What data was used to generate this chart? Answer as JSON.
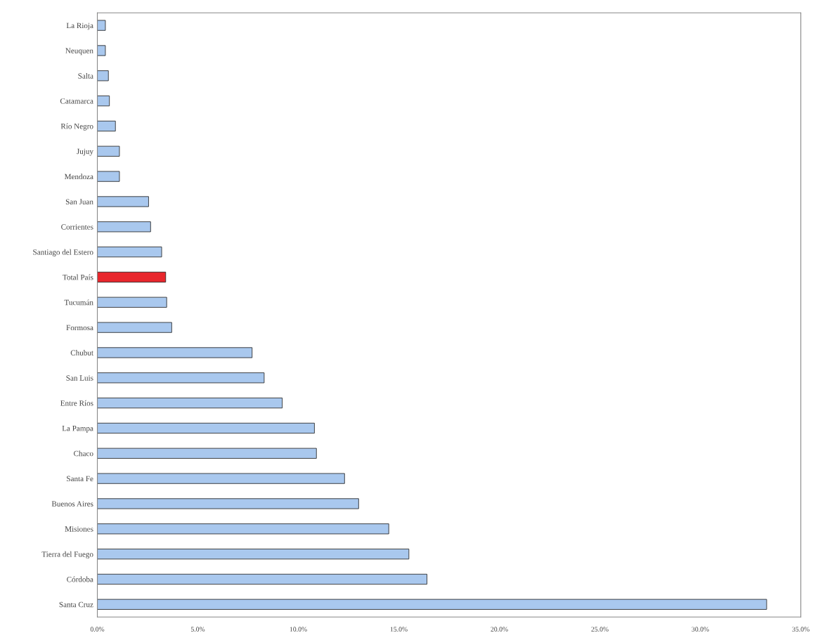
{
  "chart_data": {
    "type": "bar",
    "orientation": "horizontal",
    "categories": [
      "La Rioja",
      "Neuquen",
      "Salta",
      "Catamarca",
      "Río Negro",
      "Jujuy",
      "Mendoza",
      "San Juan",
      "Corrientes",
      "Santiago del Estero",
      "Total País",
      "Tucumán",
      "Formosa",
      "Chubut",
      "San Luis",
      "Entre Ríos",
      "La Pampa",
      "Chaco",
      "Santa Fe",
      "Buenos Aires",
      "Misiones",
      "Tierra del Fuego",
      "Córdoba",
      "Santa Cruz"
    ],
    "values": [
      0.4,
      0.4,
      0.55,
      0.6,
      0.9,
      1.1,
      1.1,
      2.55,
      2.65,
      3.2,
      3.4,
      3.45,
      3.7,
      7.7,
      8.3,
      9.2,
      10.8,
      10.9,
      12.3,
      13.0,
      14.5,
      15.5,
      16.4,
      33.3
    ],
    "colors": [
      "#a9c8ee",
      "#a9c8ee",
      "#a9c8ee",
      "#a9c8ee",
      "#a9c8ee",
      "#a9c8ee",
      "#a9c8ee",
      "#a9c8ee",
      "#a9c8ee",
      "#a9c8ee",
      "#e8262c",
      "#a9c8ee",
      "#a9c8ee",
      "#a9c8ee",
      "#a9c8ee",
      "#a9c8ee",
      "#a9c8ee",
      "#a9c8ee",
      "#a9c8ee",
      "#a9c8ee",
      "#a9c8ee",
      "#a9c8ee",
      "#a9c8ee",
      "#a9c8ee"
    ],
    "xlim": [
      0,
      35
    ],
    "xticks": [
      {
        "value": 0,
        "label": "0.0%"
      },
      {
        "value": 5,
        "label": "5.0%"
      },
      {
        "value": 10,
        "label": "10.0%"
      },
      {
        "value": 15,
        "label": "15.0%"
      },
      {
        "value": 20,
        "label": "20.0%"
      },
      {
        "value": 25,
        "label": "25.0%"
      },
      {
        "value": 30,
        "label": "30.0%"
      },
      {
        "value": 35,
        "label": "35.0%"
      }
    ],
    "grid": false,
    "legend": false
  }
}
